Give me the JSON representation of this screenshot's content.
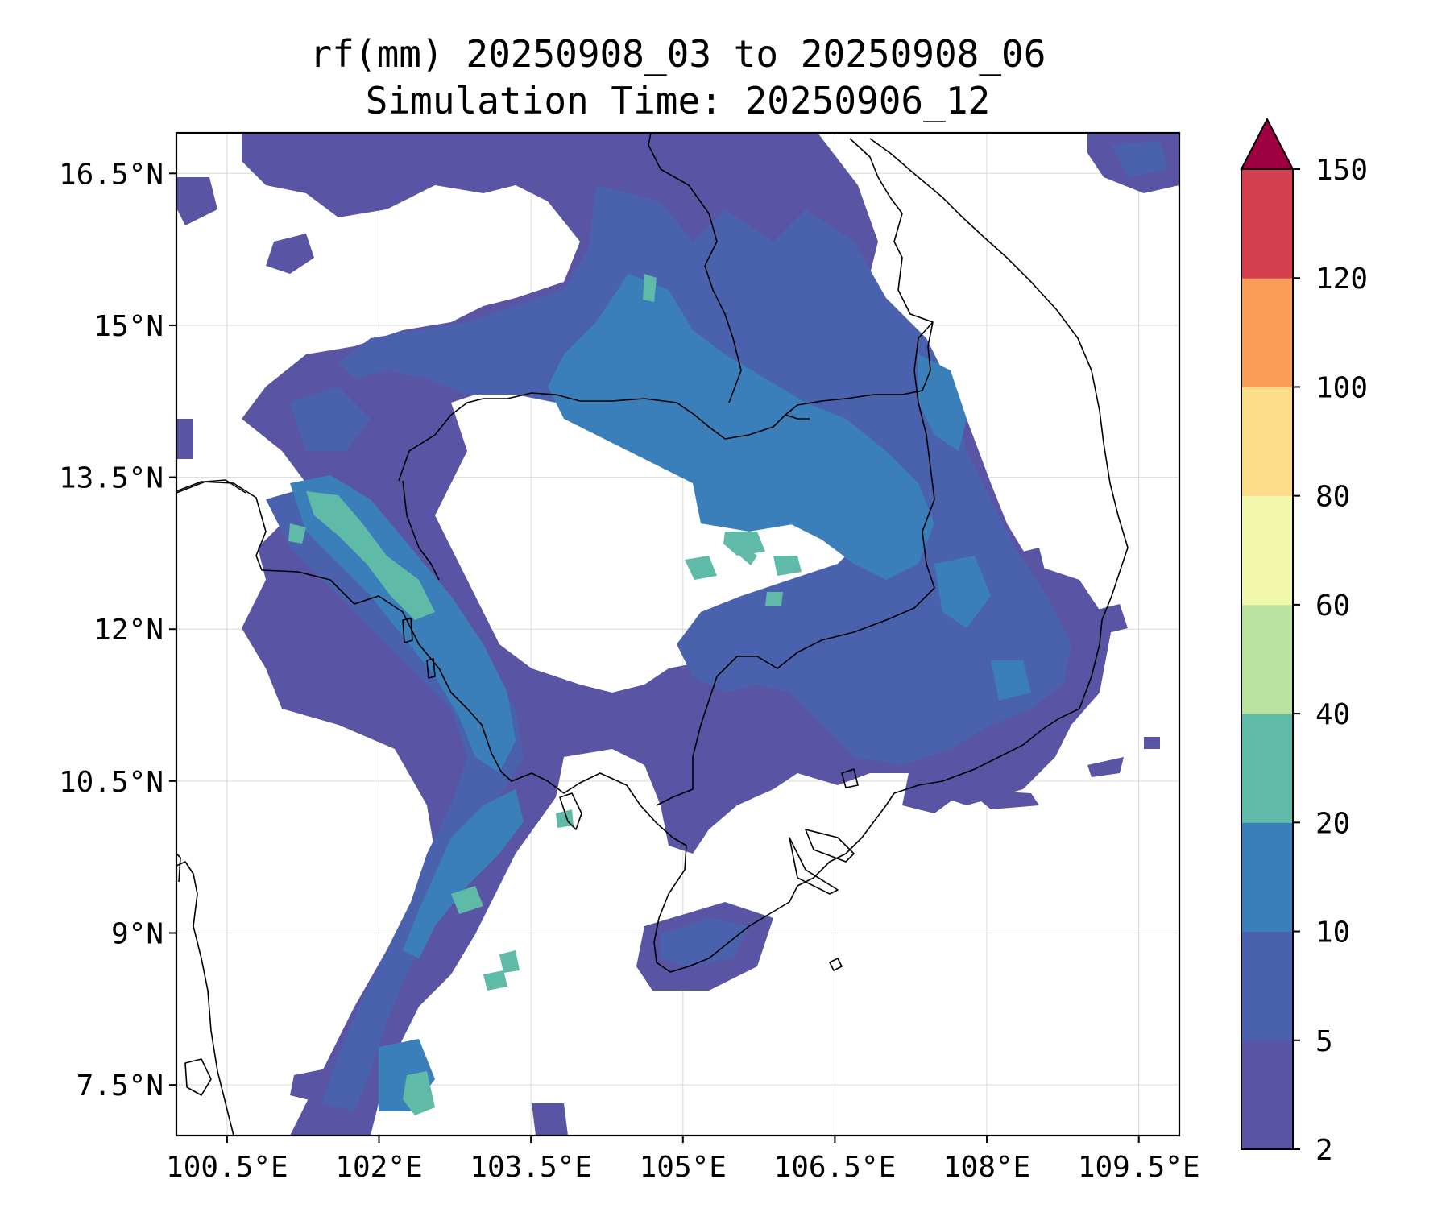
{
  "title": {
    "line1": "rf(mm) 20250908_03 to 20250908_06",
    "line2": "Simulation Time: 20250906_12"
  },
  "map": {
    "lon_range": [
      100.0,
      109.9
    ],
    "lat_range": [
      7.0,
      16.9
    ],
    "x_ticks": [
      {
        "value": 100.5,
        "label": "100.5°E"
      },
      {
        "value": 102.0,
        "label": "102°E"
      },
      {
        "value": 103.5,
        "label": "103.5°E"
      },
      {
        "value": 105.0,
        "label": "105°E"
      },
      {
        "value": 106.5,
        "label": "106.5°E"
      },
      {
        "value": 108.0,
        "label": "108°E"
      },
      {
        "value": 109.5,
        "label": "109.5°E"
      }
    ],
    "y_ticks": [
      {
        "value": 16.5,
        "label": "16.5°N"
      },
      {
        "value": 15.0,
        "label": "15°N"
      },
      {
        "value": 13.5,
        "label": "13.5°N"
      },
      {
        "value": 12.0,
        "label": "12°N"
      },
      {
        "value": 10.5,
        "label": "10.5°N"
      },
      {
        "value": 9.0,
        "label": "9°N"
      },
      {
        "value": 7.5,
        "label": "7.5°N"
      }
    ],
    "grid": true,
    "coastlines": true,
    "borders": true
  },
  "colorbar": {
    "levels": [
      2,
      5,
      10,
      20,
      40,
      60,
      80,
      100,
      120,
      150
    ],
    "labels": [
      "2",
      "5",
      "10",
      "20",
      "40",
      "60",
      "80",
      "100",
      "120",
      "150"
    ],
    "colors": [
      "#5954a4",
      "#4a62ad",
      "#3a7fba",
      "#5fbaa8",
      "#b9e19f",
      "#f1f8ab",
      "#fbdd8a",
      "#f99d59",
      "#d53e4f"
    ],
    "extend_color": "#9e0142",
    "extend": "max"
  }
}
